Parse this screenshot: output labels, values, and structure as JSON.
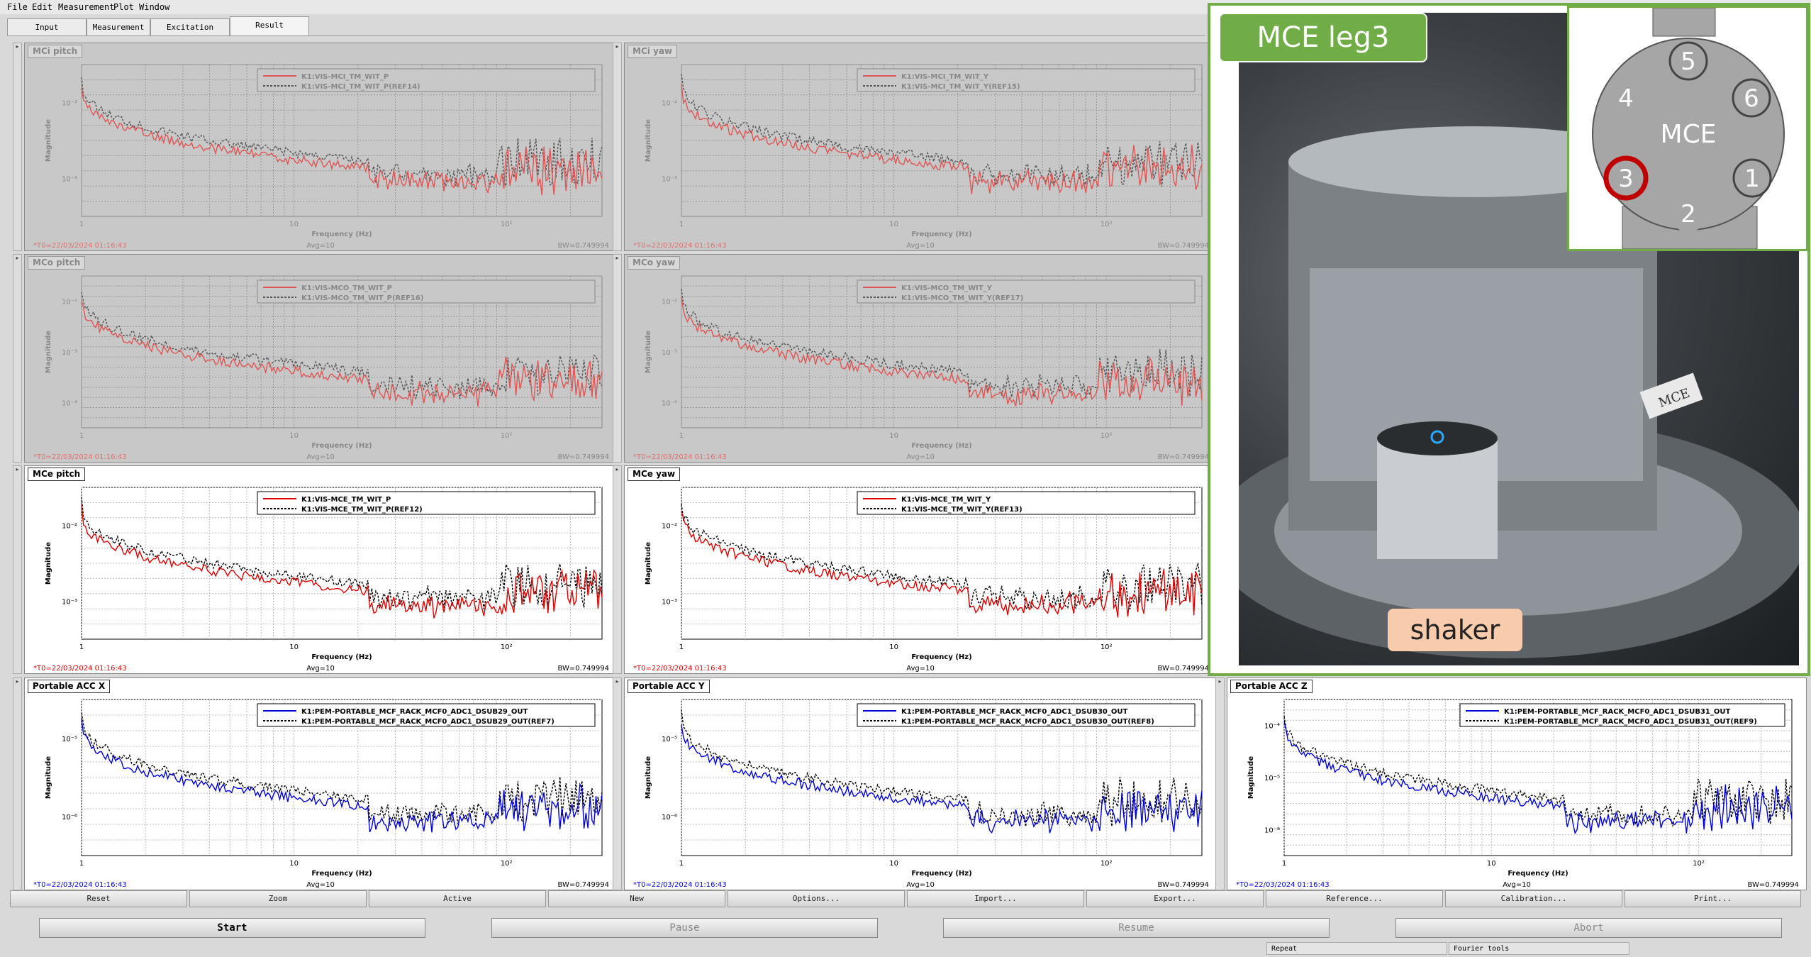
{
  "menu": [
    "File",
    "Edit",
    "Measurement",
    "Plot",
    "Window"
  ],
  "tabs": [
    {
      "label": "Input",
      "active": false
    },
    {
      "label": "Measurement",
      "active": false
    },
    {
      "label": "Excitation",
      "active": false
    },
    {
      "label": "Result",
      "active": true
    }
  ],
  "plots": [
    {
      "title": "MCi pitch",
      "dim": true,
      "ch1": "K1:VIS-MCI_TM_WIT_P",
      "ch2": "K1:VIS-MCI_TM_WIT_P(REF14)",
      "color": "#e05555",
      "yticks": [
        "10⁻²",
        "10⁻³"
      ],
      "ystart": "10⁻²",
      "t0": "*T0=22/03/2024 01:16:43",
      "avg": "Avg=10",
      "bw": "BW=0.749994",
      "xlabel": "Frequency (Hz)",
      "ylabel": "Magnitude",
      "xticks": [
        "1",
        "10",
        "10²"
      ]
    },
    {
      "title": "MCi yaw",
      "dim": true,
      "ch1": "K1:VIS-MCI_TM_WIT_Y",
      "ch2": "K1:VIS-MCI_TM_WIT_Y(REF15)",
      "color": "#e05555",
      "yticks": [
        "10⁻²",
        "10⁻³"
      ],
      "t0": "*T0=22/03/2024 01:16:43",
      "avg": "Avg=10",
      "bw": "BW=0.749994",
      "xlabel": "Frequency (Hz)",
      "ylabel": "Magnitude",
      "xticks": [
        "1",
        "10",
        "10²"
      ]
    },
    {
      "title": "MCo pitch",
      "dim": true,
      "ch1": "K1:VIS-MCO_TM_WIT_P",
      "ch2": "K1:VIS-MCO_TM_WIT_P(REF16)",
      "color": "#e05555",
      "yticks": [
        "10⁻²",
        "10⁻³",
        "10⁻⁴"
      ],
      "t0": "*T0=22/03/2024 01:16:43",
      "avg": "Avg=10",
      "bw": "BW=0.749994",
      "xlabel": "Frequency (Hz)",
      "ylabel": "Magnitude",
      "xticks": [
        "1",
        "10",
        "10²"
      ]
    },
    {
      "title": "MCo yaw",
      "dim": true,
      "ch1": "K1:VIS-MCO_TM_WIT_Y",
      "ch2": "K1:VIS-MCO_TM_WIT_Y(REF17)",
      "color": "#e05555",
      "yticks": [
        "10⁻²",
        "10⁻³",
        "10⁻⁴"
      ],
      "t0": "*T0=22/03/2024 01:16:43",
      "avg": "Avg=10",
      "bw": "BW=0.749994",
      "xlabel": "Frequency (Hz)",
      "ylabel": "Magnitude",
      "xticks": [
        "1",
        "10",
        "10²"
      ]
    },
    {
      "title": "MCe pitch",
      "dim": false,
      "ch1": "K1:VIS-MCE_TM_WIT_P",
      "ch2": "K1:VIS-MCE_TM_WIT_P(REF12)",
      "color": "#e00000",
      "yticks": [
        "10⁻²",
        "10⁻³"
      ],
      "t0": "*T0=22/03/2024 01:16:43",
      "avg": "Avg=10",
      "bw": "BW=0.749994",
      "xlabel": "Frequency (Hz)",
      "ylabel": "Magnitude",
      "xticks": [
        "1",
        "10",
        "10²"
      ]
    },
    {
      "title": "MCe yaw",
      "dim": false,
      "ch1": "K1:VIS-MCE_TM_WIT_Y",
      "ch2": "K1:VIS-MCE_TM_WIT_Y(REF13)",
      "color": "#e00000",
      "yticks": [
        "10⁻²",
        "10⁻³"
      ],
      "t0": "*T0=22/03/2024 01:16:43",
      "avg": "Avg=10",
      "bw": "BW=0.749994",
      "xlabel": "Frequency (Hz)",
      "ylabel": "Magnitude",
      "xticks": [
        "1",
        "10",
        "10²"
      ]
    },
    {
      "title": "Portable ACC X",
      "dim": false,
      "ch1": "K1:PEM-PORTABLE_MCF_RACK_MCF0_ADC1_DSUB29_OUT",
      "ch2": "K1:PEM-PORTABLE_MCF_RACK_MCF0_ADC1_DSUB29_OUT(REF7)",
      "color": "#0000e0",
      "yticks": [
        "10⁻⁵",
        "10⁻⁶"
      ],
      "t0": "*T0=22/03/2024 01:16:43",
      "avg": "Avg=10",
      "bw": "BW=0.749994",
      "xlabel": "Frequency (Hz)",
      "ylabel": "Magnitude",
      "xticks": [
        "1",
        "10",
        "10²"
      ]
    },
    {
      "title": "Portable ACC Y",
      "dim": false,
      "ch1": "K1:PEM-PORTABLE_MCF_RACK_MCF0_ADC1_DSUB30_OUT",
      "ch2": "K1:PEM-PORTABLE_MCF_RACK_MCF0_ADC1_DSUB30_OUT(REF8)",
      "color": "#0000e0",
      "yticks": [
        "10⁻⁵",
        "10⁻⁶"
      ],
      "t0": "*T0=22/03/2024 01:16:43",
      "avg": "Avg=10",
      "bw": "BW=0.749994",
      "xlabel": "Frequency (Hz)",
      "ylabel": "Magnitude",
      "xticks": [
        "1",
        "10",
        "10²"
      ]
    },
    {
      "title": "Portable ACC Z",
      "dim": false,
      "ch1": "K1:PEM-PORTABLE_MCF_RACK_MCF0_ADC1_DSUB31_OUT",
      "ch2": "K1:PEM-PORTABLE_MCF_RACK_MCF0_ADC1_DSUB31_OUT(REF9)",
      "color": "#0000e0",
      "yticks": [
        "10⁻⁴",
        "10⁻⁵",
        "10⁻⁶"
      ],
      "t0": "*T0=22/03/2024 01:16:43",
      "avg": "Avg=10",
      "bw": "BW=0.749994",
      "xlabel": "Frequency (Hz)",
      "ylabel": "Magnitude",
      "xticks": [
        "1",
        "10",
        "10²"
      ]
    }
  ],
  "buttons": [
    "Reset",
    "Zoom",
    "Active",
    "New",
    "Options...",
    "Import...",
    "Export...",
    "Reference...",
    "Calibration...",
    "Print..."
  ],
  "main_buttons": [
    "Start",
    "Pause",
    "Resume",
    "Abort"
  ],
  "status": [
    "Repeat",
    "Fourier tools"
  ],
  "photo": {
    "label": "MCE leg3",
    "shaker_label": "shaker",
    "center_label": "MCE",
    "stamp_label": "MCE",
    "legs": [
      "5",
      "4",
      "6",
      "3",
      "1",
      "2"
    ]
  }
}
